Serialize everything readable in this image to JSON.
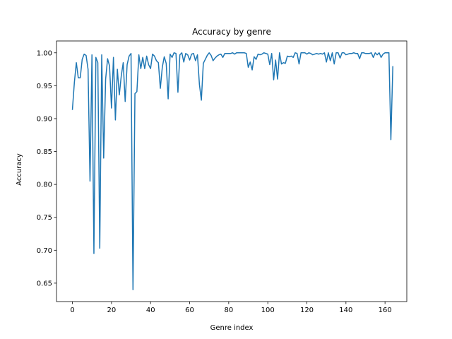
{
  "chart_data": {
    "type": "line",
    "title": "Accuracy by genre",
    "xlabel": "Genre index",
    "ylabel": "Accuracy",
    "xlim": [
      -8.15,
      171.15
    ],
    "ylim": [
      0.622,
      1.018
    ],
    "xticks": [
      0,
      20,
      40,
      60,
      80,
      100,
      120,
      140,
      160
    ],
    "xtick_labels": [
      "0",
      "20",
      "40",
      "60",
      "80",
      "100",
      "120",
      "140",
      "160"
    ],
    "yticks": [
      0.65,
      0.7,
      0.75,
      0.8,
      0.85,
      0.9,
      0.95,
      1.0
    ],
    "ytick_labels": [
      "0.65",
      "0.70",
      "0.75",
      "0.80",
      "0.85",
      "0.90",
      "0.95",
      "1.00"
    ],
    "grid": false,
    "line_color": "#1f77b4",
    "series": [
      {
        "values": [
          0.914,
          0.955,
          0.985,
          0.962,
          0.962,
          0.99,
          0.998,
          0.996,
          0.975,
          0.805,
          0.997,
          0.695,
          0.993,
          0.985,
          0.703,
          0.997,
          0.84,
          0.96,
          0.991,
          0.98,
          0.916,
          0.993,
          0.898,
          0.975,
          0.936,
          0.965,
          0.985,
          0.926,
          0.982,
          0.995,
          0.999,
          0.64,
          0.938,
          0.941,
          0.997,
          0.976,
          0.993,
          0.976,
          0.995,
          0.982,
          0.976,
          0.998,
          0.995,
          0.988,
          0.985,
          0.946,
          0.978,
          0.994,
          0.984,
          0.93,
          0.998,
          0.993,
          1.0,
          0.999,
          0.94,
          0.997,
          1.0,
          0.986,
          0.999,
          0.997,
          0.989,
          0.998,
          0.999,
          0.988,
          0.997,
          0.952,
          0.928,
          0.984,
          0.99,
          0.996,
          1.0,
          0.996,
          0.988,
          0.992,
          0.995,
          0.997,
          0.998,
          0.993,
          0.999,
          0.999,
          0.999,
          0.999,
          1.0,
          0.998,
          1.0,
          1.0,
          1.0,
          1.0,
          1.0,
          0.999,
          0.978,
          0.986,
          0.974,
          0.994,
          0.99,
          0.998,
          0.997,
          0.998,
          1.0,
          0.999,
          0.998,
          0.982,
          0.999,
          0.959,
          0.989,
          0.96,
          1.0,
          0.983,
          0.985,
          0.984,
          0.995,
          0.994,
          0.995,
          0.993,
          1.0,
          0.999,
          0.983,
          1.0,
          1.0,
          1.0,
          0.998,
          1.0,
          0.999,
          0.997,
          0.998,
          0.999,
          0.998,
          0.999,
          0.998,
          1.0,
          0.986,
          1.0,
          0.988,
          1.0,
          0.983,
          1.0,
          1.0,
          0.992,
          1.0,
          1.0,
          0.997,
          0.998,
          0.999,
          0.999,
          1.0,
          0.999,
          0.999,
          0.991,
          1.0,
          1.0,
          0.999,
          0.999,
          0.999,
          1.0,
          0.993,
          1.0,
          0.997,
          1.0,
          0.993,
          0.998,
          1.0,
          1.0,
          1.0,
          0.868,
          0.979
        ]
      }
    ]
  }
}
